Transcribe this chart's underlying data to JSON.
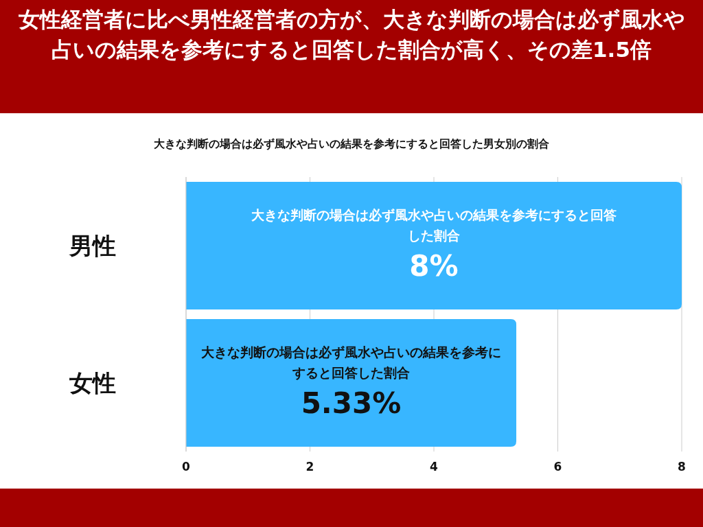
{
  "chart_data": {
    "type": "bar",
    "orientation": "horizontal",
    "title": "女性経営者に比べ男性経営者の方が、大きな判断の場合は必ず風水や占いの結果を参考にすると回答した割合が高く、その差1.5倍",
    "subtitle": "大きな判断の場合は必ず風水や占いの結果を参考にすると回答した男女別の割合",
    "categories": [
      "男性",
      "女性"
    ],
    "values": [
      8,
      5.33
    ],
    "color": "#38b6ff",
    "value_labels": [
      "8%",
      "5.33%"
    ],
    "annotations": [
      "大きな判断の場合は必ず風水や占いの結果を参考にすると回答した割合",
      "大きな判断の場合は必ず風水や占いの結果を参考にすると回答した割合"
    ],
    "xlim": [
      0,
      8
    ],
    "xticks": [
      0,
      2,
      4,
      6,
      8
    ],
    "grid": "x"
  }
}
